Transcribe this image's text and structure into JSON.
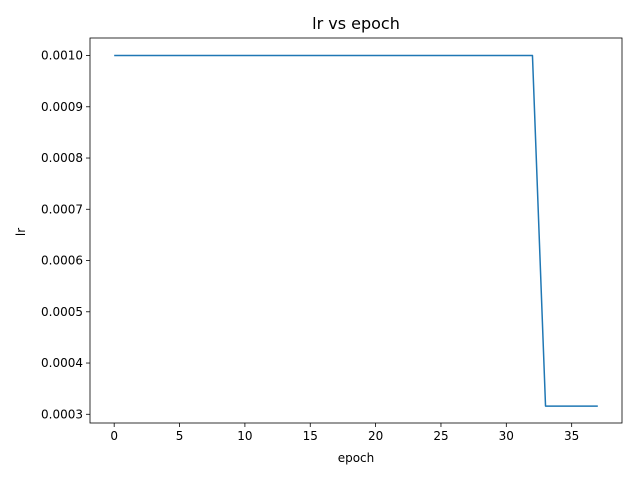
{
  "chart_data": {
    "type": "line",
    "title": "lr vs epoch",
    "xlabel": "epoch",
    "ylabel": "lr",
    "xlim": [
      -1.85,
      38.85
    ],
    "ylim": [
      0.000283,
      0.0010342
    ],
    "xticks": [
      0,
      5,
      10,
      15,
      20,
      25,
      30,
      35
    ],
    "xtick_labels": [
      "0",
      "5",
      "10",
      "15",
      "20",
      "25",
      "30",
      "35"
    ],
    "yticks": [
      0.0003,
      0.0004,
      0.0005,
      0.0006,
      0.0007,
      0.0008,
      0.0009,
      0.001
    ],
    "ytick_labels": [
      "0.0003",
      "0.0004",
      "0.0005",
      "0.0006",
      "0.0007",
      "0.0008",
      "0.0009",
      "0.0010"
    ],
    "grid": false,
    "series": [
      {
        "color": "#1f77b4",
        "x": [
          0,
          1,
          2,
          3,
          4,
          5,
          6,
          7,
          8,
          9,
          10,
          11,
          12,
          13,
          14,
          15,
          16,
          17,
          18,
          19,
          20,
          21,
          22,
          23,
          24,
          25,
          26,
          27,
          28,
          29,
          30,
          31,
          32,
          33,
          34,
          35,
          36,
          37
        ],
        "y": [
          0.001,
          0.001,
          0.001,
          0.001,
          0.001,
          0.001,
          0.001,
          0.001,
          0.001,
          0.001,
          0.001,
          0.001,
          0.001,
          0.001,
          0.001,
          0.001,
          0.001,
          0.001,
          0.001,
          0.001,
          0.001,
          0.001,
          0.001,
          0.001,
          0.001,
          0.001,
          0.001,
          0.001,
          0.001,
          0.001,
          0.001,
          0.001,
          0.001,
          0.000316,
          0.000316,
          0.000316,
          0.000316,
          0.000316
        ]
      }
    ]
  }
}
